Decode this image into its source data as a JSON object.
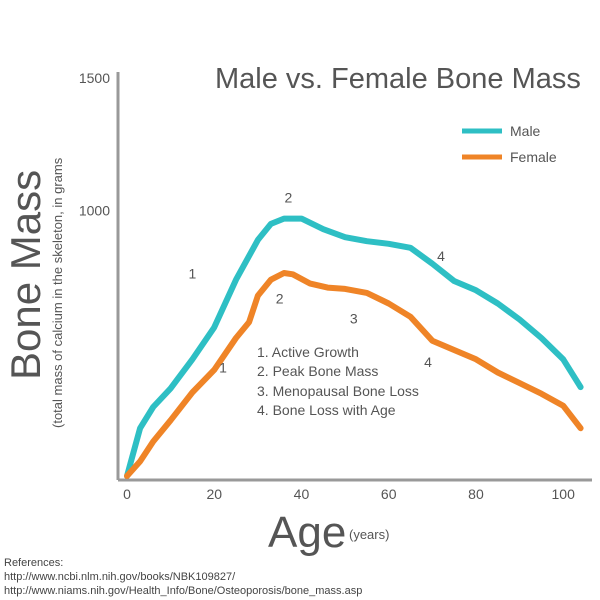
{
  "chart_data": {
    "type": "line",
    "title": "Male vs. Female Bone Mass",
    "ylabel_main": "Bone Mass",
    "ylabel_sub": "(total mass of calcium in the skeleton, in grams",
    "xlabel_main": "Age",
    "xlabel_sub": "(years)",
    "xlim": [
      0,
      105
    ],
    "ylim": [
      0,
      1500
    ],
    "x_ticks": [
      0,
      20,
      40,
      60,
      80,
      100
    ],
    "y_ticks": [
      1000,
      1500
    ],
    "grid": false,
    "legend_position": "top-right",
    "series": [
      {
        "name": "Male",
        "color": "#2ebfc4",
        "points": [
          [
            0,
            0
          ],
          [
            3,
            180
          ],
          [
            6,
            260
          ],
          [
            10,
            330
          ],
          [
            15,
            440
          ],
          [
            20,
            560
          ],
          [
            25,
            740
          ],
          [
            30,
            890
          ],
          [
            33,
            950
          ],
          [
            36,
            970
          ],
          [
            40,
            970
          ],
          [
            45,
            930
          ],
          [
            50,
            900
          ],
          [
            55,
            885
          ],
          [
            60,
            875
          ],
          [
            65,
            860
          ],
          [
            70,
            800
          ],
          [
            75,
            735
          ],
          [
            80,
            700
          ],
          [
            85,
            650
          ],
          [
            90,
            590
          ],
          [
            95,
            520
          ],
          [
            100,
            440
          ],
          [
            104,
            335
          ]
        ]
      },
      {
        "name": "Female",
        "color": "#ef8427",
        "points": [
          [
            0,
            0
          ],
          [
            3,
            55
          ],
          [
            6,
            130
          ],
          [
            10,
            210
          ],
          [
            15,
            315
          ],
          [
            20,
            400
          ],
          [
            25,
            520
          ],
          [
            28,
            580
          ],
          [
            30,
            680
          ],
          [
            33,
            740
          ],
          [
            36,
            765
          ],
          [
            38,
            760
          ],
          [
            42,
            725
          ],
          [
            46,
            710
          ],
          [
            50,
            705
          ],
          [
            55,
            690
          ],
          [
            60,
            650
          ],
          [
            65,
            600
          ],
          [
            70,
            510
          ],
          [
            75,
            475
          ],
          [
            80,
            440
          ],
          [
            85,
            390
          ],
          [
            90,
            350
          ],
          [
            95,
            310
          ],
          [
            100,
            265
          ],
          [
            104,
            180
          ]
        ]
      }
    ],
    "annotations": [
      {
        "text": "2",
        "x": 37,
        "y": 1030
      },
      {
        "text": "1",
        "x": 15,
        "y": 745
      },
      {
        "text": "4",
        "x": 72,
        "y": 810
      },
      {
        "text": "2",
        "x": 35,
        "y": 650
      },
      {
        "text": "3",
        "x": 52,
        "y": 575
      },
      {
        "text": "1",
        "x": 22,
        "y": 390
      },
      {
        "text": "4",
        "x": 69,
        "y": 410
      }
    ],
    "notes": [
      "1. Active Growth",
      "2. Peak Bone Mass",
      "3. Menopausal Bone Loss",
      "4. Bone Loss with Age"
    ]
  },
  "references": {
    "heading": "References:",
    "links": [
      "http://www.ncbi.nlm.nih.gov/books/NBK109827/",
      "http://www.niams.nih.gov/Health_Info/Bone/Osteoporosis/bone_mass.asp"
    ]
  }
}
